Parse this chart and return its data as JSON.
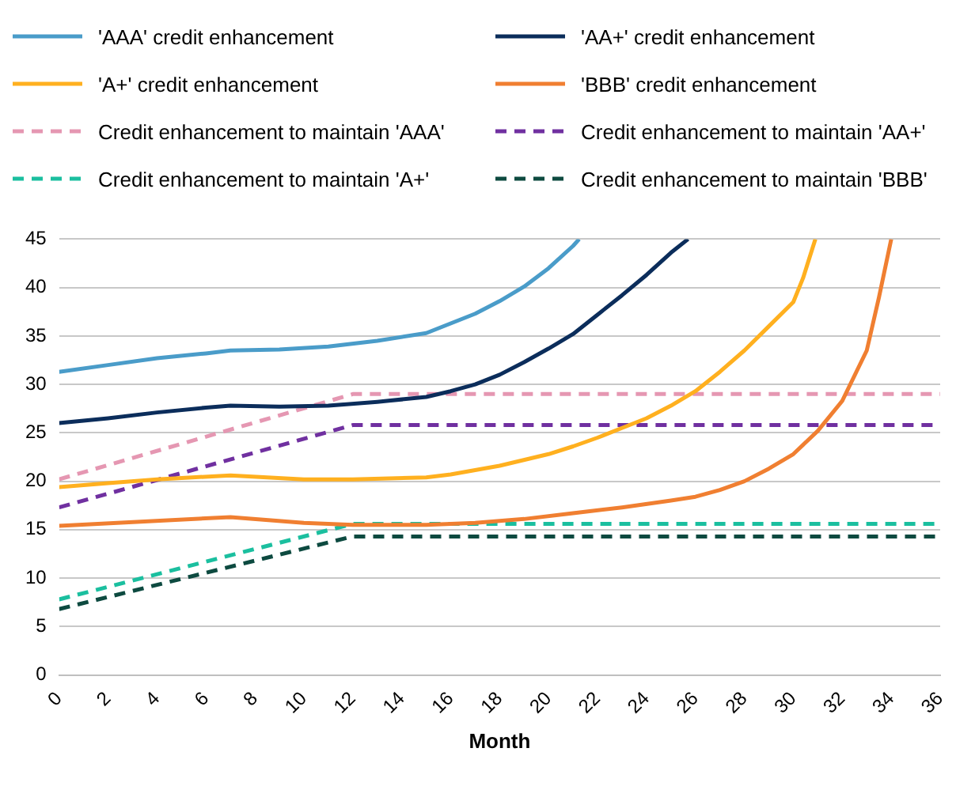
{
  "chart_data": {
    "type": "line",
    "xlabel": "Month",
    "xlim": [
      0,
      36
    ],
    "xticks": [
      0,
      2,
      4,
      6,
      8,
      10,
      12,
      14,
      16,
      18,
      20,
      22,
      24,
      26,
      28,
      30,
      32,
      34,
      36
    ],
    "ylim": [
      0,
      45
    ],
    "yticks": [
      0,
      5,
      10,
      15,
      20,
      25,
      30,
      35,
      40,
      45
    ],
    "grid": "y",
    "legend": "top",
    "marker": "none",
    "series": [
      {
        "name": "'AAA' credit enhancement",
        "color": "#4a9cc9",
        "line_style": "solid",
        "x": [
          0,
          2,
          4,
          6,
          7,
          9,
          11,
          13,
          15,
          16,
          17,
          18,
          19,
          20,
          21,
          21.25
        ],
        "values": [
          31.3,
          32,
          32.7,
          33.2,
          33.5,
          33.6,
          33.9,
          34.5,
          35.3,
          36.3,
          37.3,
          38.6,
          40.1,
          42,
          44.3,
          45
        ]
      },
      {
        "name": "'AA+' credit enhancement",
        "color": "#0b2d5b",
        "line_style": "solid",
        "x": [
          0,
          2,
          4,
          6,
          7,
          9,
          11,
          13,
          15,
          16,
          17,
          18,
          19,
          20,
          21,
          22,
          23,
          24,
          25,
          25.7
        ],
        "values": [
          26,
          26.5,
          27.1,
          27.6,
          27.8,
          27.7,
          27.8,
          28.2,
          28.7,
          29.3,
          30,
          31,
          32.3,
          33.7,
          35.2,
          37.2,
          39.2,
          41.3,
          43.6,
          45
        ]
      },
      {
        "name": "'A+' credit enhancement",
        "color": "#ffb01f",
        "line_style": "solid",
        "x": [
          0,
          2,
          4,
          7,
          10,
          12,
          15,
          16,
          18,
          20,
          21,
          22,
          23,
          24,
          25,
          26,
          27,
          28,
          29,
          30,
          30.4,
          30.9
        ],
        "values": [
          19.4,
          19.8,
          20.2,
          20.6,
          20.2,
          20.2,
          20.4,
          20.7,
          21.6,
          22.8,
          23.6,
          24.5,
          25.5,
          26.5,
          27.8,
          29.3,
          31.3,
          33.5,
          36,
          38.5,
          41,
          45
        ]
      },
      {
        "name": "'BBB' credit enhancement",
        "color": "#f07f31",
        "line_style": "solid",
        "x": [
          0,
          7,
          10,
          12,
          15,
          17,
          19,
          21,
          23,
          25,
          26,
          27,
          28,
          29,
          30,
          31,
          32,
          33,
          33.5,
          34
        ],
        "values": [
          15.4,
          16.3,
          15.7,
          15.5,
          15.5,
          15.7,
          16.1,
          16.7,
          17.3,
          18,
          18.4,
          19.1,
          20,
          21.3,
          22.8,
          25.2,
          28.3,
          33.5,
          39,
          45
        ]
      },
      {
        "name": "Credit enhancement to maintain 'AAA'",
        "color": "#e597b2",
        "line_style": "dashed",
        "x": [
          0,
          12,
          36
        ],
        "values": [
          20.2,
          29,
          29
        ]
      },
      {
        "name": "Credit enhancement to maintain 'AA+'",
        "color": "#7030a0",
        "line_style": "dashed",
        "x": [
          0,
          12,
          36
        ],
        "values": [
          17.3,
          25.8,
          25.8
        ]
      },
      {
        "name": "Credit enhancement to maintain 'A+'",
        "color": "#1bbf9f",
        "line_style": "dashed",
        "x": [
          0,
          12,
          36
        ],
        "values": [
          7.8,
          15.6,
          15.6
        ]
      },
      {
        "name": "Credit enhancement to maintain 'BBB'",
        "color": "#0d4a40",
        "line_style": "dashed",
        "x": [
          0,
          12,
          36
        ],
        "values": [
          6.8,
          14.3,
          14.3
        ]
      }
    ]
  }
}
